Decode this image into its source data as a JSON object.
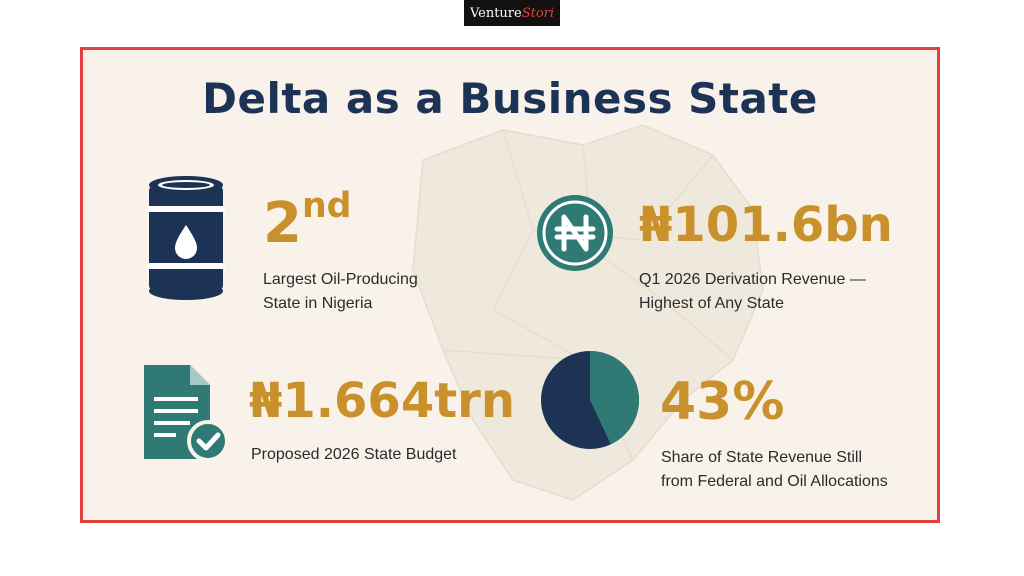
{
  "header": {
    "logo_part1": "Venture",
    "logo_part2": "Stori"
  },
  "infographic": {
    "title": "Delta as a Business State",
    "stats": [
      {
        "value": "2",
        "value_suffix": "nd",
        "caption_line1": "Largest Oil-Producing",
        "caption_line2": "State in Nigeria",
        "icon": "oil-barrel-icon"
      },
      {
        "value": "₦101.6bn",
        "caption_line1": "Q1 2026 Derivation Revenue —",
        "caption_line2": "Highest of Any State",
        "icon": "naira-coin-icon"
      },
      {
        "value": "₦1.664trn",
        "caption_line1": "Proposed 2026 State Budget",
        "icon": "document-check-icon"
      },
      {
        "value": "43%",
        "caption_line1": "Share of State Revenue Still",
        "caption_line2": "from Federal and Oil Allocations",
        "icon": "pie-chart-icon",
        "share": 0.43
      }
    ],
    "colors": {
      "navy": "#1c3355",
      "gold": "#c8912b",
      "teal": "#2f7a74",
      "border": "#e1403d",
      "background": "#f8f2ea"
    }
  }
}
